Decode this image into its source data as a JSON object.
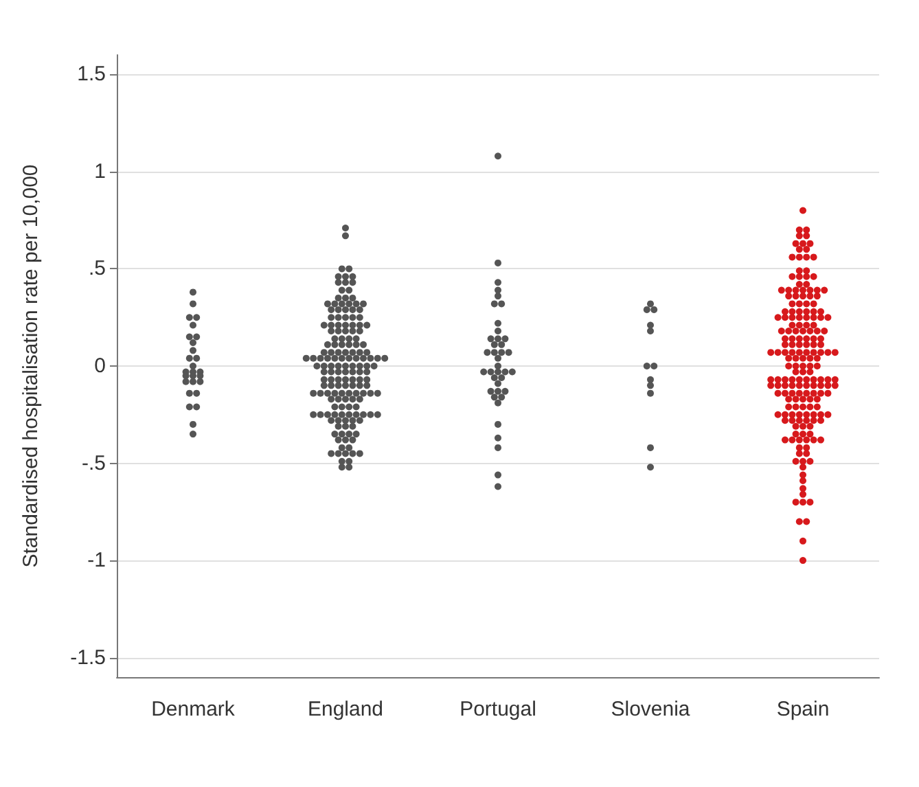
{
  "chart_data": {
    "type": "scatter",
    "ylabel": "Standardised hospitalisation rate per 10,000",
    "categories": [
      "Denmark",
      "England",
      "Portugal",
      "Slovenia",
      "Spain"
    ],
    "ylim": [
      -1.6,
      1.6
    ],
    "yticks": [
      {
        "value": -1.5,
        "label": "-1.5"
      },
      {
        "value": -1,
        "label": "-1"
      },
      {
        "value": -0.5,
        "label": "-.5"
      },
      0,
      {
        "value": 0.5,
        "label": ".5"
      },
      1,
      {
        "value": 1.5,
        "label": "1.5"
      }
    ],
    "grid": "y",
    "marker": "circle",
    "series": [
      {
        "color": "#555555",
        "x": [
          "Denmark",
          "Denmark",
          "Denmark",
          "Denmark",
          "Denmark",
          "Denmark",
          "Denmark",
          "Denmark",
          "Denmark",
          "Denmark",
          "Denmark",
          "Denmark",
          "Denmark",
          "Denmark",
          "Denmark",
          "Denmark",
          "Denmark",
          "Denmark",
          "Denmark",
          "Denmark",
          "Denmark",
          "Denmark",
          "Denmark",
          "Denmark",
          "Denmark",
          "Denmark",
          "Denmark"
        ],
        "values": [
          0.38,
          0.32,
          0.25,
          0.25,
          0.21,
          0.15,
          0.15,
          0.12,
          0.08,
          0.04,
          0.04,
          0,
          -0.03,
          -0.03,
          -0.03,
          -0.05,
          -0.05,
          -0.05,
          -0.08,
          -0.08,
          -0.08,
          -0.14,
          -0.14,
          -0.21,
          -0.21,
          -0.3,
          -0.35
        ]
      },
      {
        "color": "#555555",
        "x": [
          "England",
          "England",
          "England",
          "England",
          "England",
          "England",
          "England",
          "England",
          "England",
          "England",
          "England",
          "England",
          "England",
          "England",
          "England",
          "England",
          "England",
          "England",
          "England",
          "England",
          "England",
          "England",
          "England",
          "England",
          "England",
          "England",
          "England",
          "England",
          "England",
          "England",
          "England",
          "England",
          "England",
          "England",
          "England",
          "England",
          "England",
          "England",
          "England",
          "England",
          "England",
          "England",
          "England",
          "England",
          "England",
          "England",
          "England",
          "England",
          "England",
          "England",
          "England",
          "England",
          "England",
          "England",
          "England",
          "England",
          "England",
          "England",
          "England",
          "England",
          "England",
          "England",
          "England",
          "England",
          "England",
          "England",
          "England",
          "England",
          "England",
          "England",
          "England",
          "England",
          "England",
          "England",
          "England",
          "England",
          "England",
          "England",
          "England",
          "England",
          "England",
          "England",
          "England",
          "England",
          "England",
          "England",
          "England",
          "England",
          "England",
          "England",
          "England",
          "England",
          "England",
          "England",
          "England",
          "England",
          "England",
          "England",
          "England",
          "England",
          "England",
          "England",
          "England",
          "England",
          "England",
          "England",
          "England",
          "England",
          "England",
          "England",
          "England",
          "England",
          "England",
          "England",
          "England",
          "England",
          "England",
          "England",
          "England",
          "England",
          "England",
          "England",
          "England",
          "England",
          "England",
          "England",
          "England",
          "England",
          "England",
          "England",
          "England",
          "England",
          "England",
          "England",
          "England",
          "England",
          "England",
          "England",
          "England",
          "England",
          "England",
          "England",
          "England",
          "England",
          "England",
          "England",
          "England",
          "England",
          "England",
          "England",
          "England",
          "England",
          "England",
          "England",
          "England",
          "England",
          "England"
        ],
        "values": [
          0.71,
          0.67,
          0.5,
          0.5,
          0.46,
          0.46,
          0.46,
          0.43,
          0.43,
          0.43,
          0.39,
          0.39,
          0.35,
          0.35,
          0.35,
          0.32,
          0.32,
          0.32,
          0.32,
          0.32,
          0.32,
          0.29,
          0.29,
          0.29,
          0.29,
          0.29,
          0.25,
          0.25,
          0.25,
          0.25,
          0.25,
          0.21,
          0.21,
          0.21,
          0.21,
          0.21,
          0.21,
          0.21,
          0.18,
          0.18,
          0.18,
          0.18,
          0.18,
          0.14,
          0.14,
          0.14,
          0.14,
          0.11,
          0.11,
          0.11,
          0.11,
          0.11,
          0.11,
          0.07,
          0.07,
          0.07,
          0.07,
          0.07,
          0.07,
          0.07,
          0.04,
          0.04,
          0.04,
          0.04,
          0.04,
          0.04,
          0.04,
          0.04,
          0.04,
          0.04,
          0.04,
          0.04,
          0,
          0,
          0,
          0,
          0,
          0,
          0,
          0,
          0,
          -0.03,
          -0.03,
          -0.03,
          -0.03,
          -0.03,
          -0.03,
          -0.03,
          -0.07,
          -0.07,
          -0.07,
          -0.07,
          -0.07,
          -0.07,
          -0.07,
          -0.1,
          -0.1,
          -0.1,
          -0.1,
          -0.1,
          -0.1,
          -0.1,
          -0.14,
          -0.14,
          -0.14,
          -0.14,
          -0.14,
          -0.14,
          -0.14,
          -0.14,
          -0.14,
          -0.14,
          -0.17,
          -0.17,
          -0.17,
          -0.17,
          -0.17,
          -0.21,
          -0.21,
          -0.21,
          -0.21,
          -0.25,
          -0.25,
          -0.25,
          -0.25,
          -0.25,
          -0.25,
          -0.25,
          -0.25,
          -0.25,
          -0.25,
          -0.28,
          -0.28,
          -0.28,
          -0.28,
          -0.28,
          -0.31,
          -0.31,
          -0.31,
          -0.35,
          -0.35,
          -0.35,
          -0.35,
          -0.38,
          -0.38,
          -0.38,
          -0.42,
          -0.42,
          -0.45,
          -0.45,
          -0.45,
          -0.45,
          -0.45,
          -0.49,
          -0.49,
          -0.52,
          -0.52
        ]
      },
      {
        "color": "#555555",
        "x": [
          "Portugal",
          "Portugal",
          "Portugal",
          "Portugal",
          "Portugal",
          "Portugal",
          "Portugal",
          "Portugal",
          "Portugal",
          "Portugal",
          "Portugal",
          "Portugal",
          "Portugal",
          "Portugal",
          "Portugal",
          "Portugal",
          "Portugal",
          "Portugal",
          "Portugal",
          "Portugal",
          "Portugal",
          "Portugal",
          "Portugal",
          "Portugal",
          "Portugal",
          "Portugal",
          "Portugal",
          "Portugal",
          "Portugal",
          "Portugal",
          "Portugal",
          "Portugal",
          "Portugal",
          "Portugal",
          "Portugal",
          "Portugal",
          "Portugal",
          "Portugal",
          "Portugal"
        ],
        "values": [
          1.08,
          0.53,
          0.43,
          0.39,
          0.36,
          0.32,
          0.32,
          0.22,
          0.18,
          0.14,
          0.14,
          0.14,
          0.11,
          0.11,
          0.07,
          0.07,
          0.07,
          0.07,
          0.04,
          0,
          -0.03,
          -0.03,
          -0.03,
          -0.03,
          -0.03,
          -0.06,
          -0.06,
          -0.09,
          -0.13,
          -0.13,
          -0.13,
          -0.16,
          -0.16,
          -0.19,
          -0.3,
          -0.37,
          -0.42,
          -0.56,
          -0.62
        ]
      },
      {
        "color": "#555555",
        "x": [
          "Slovenia",
          "Slovenia",
          "Slovenia",
          "Slovenia",
          "Slovenia",
          "Slovenia",
          "Slovenia",
          "Slovenia",
          "Slovenia",
          "Slovenia",
          "Slovenia",
          "Slovenia"
        ],
        "values": [
          0.32,
          0.29,
          0.29,
          0.21,
          0.18,
          0,
          0,
          -0.07,
          -0.1,
          -0.14,
          -0.42,
          -0.52
        ]
      },
      {
        "color": "#d7191c",
        "x": [
          "Spain",
          "Spain",
          "Spain",
          "Spain",
          "Spain",
          "Spain",
          "Spain",
          "Spain",
          "Spain",
          "Spain",
          "Spain",
          "Spain",
          "Spain",
          "Spain",
          "Spain",
          "Spain",
          "Spain",
          "Spain",
          "Spain",
          "Spain",
          "Spain",
          "Spain",
          "Spain",
          "Spain",
          "Spain",
          "Spain",
          "Spain",
          "Spain",
          "Spain",
          "Spain",
          "Spain",
          "Spain",
          "Spain",
          "Spain",
          "Spain",
          "Spain",
          "Spain",
          "Spain",
          "Spain",
          "Spain",
          "Spain",
          "Spain",
          "Spain",
          "Spain",
          "Spain",
          "Spain",
          "Spain",
          "Spain",
          "Spain",
          "Spain",
          "Spain",
          "Spain",
          "Spain",
          "Spain",
          "Spain",
          "Spain",
          "Spain",
          "Spain",
          "Spain",
          "Spain",
          "Spain",
          "Spain",
          "Spain",
          "Spain",
          "Spain",
          "Spain",
          "Spain",
          "Spain",
          "Spain",
          "Spain",
          "Spain",
          "Spain",
          "Spain",
          "Spain",
          "Spain",
          "Spain",
          "Spain",
          "Spain",
          "Spain",
          "Spain",
          "Spain",
          "Spain",
          "Spain",
          "Spain",
          "Spain",
          "Spain",
          "Spain",
          "Spain",
          "Spain",
          "Spain",
          "Spain",
          "Spain",
          "Spain",
          "Spain",
          "Spain",
          "Spain",
          "Spain",
          "Spain",
          "Spain",
          "Spain",
          "Spain",
          "Spain",
          "Spain",
          "Spain",
          "Spain",
          "Spain",
          "Spain",
          "Spain",
          "Spain",
          "Spain",
          "Spain",
          "Spain",
          "Spain",
          "Spain",
          "Spain",
          "Spain",
          "Spain",
          "Spain",
          "Spain",
          "Spain",
          "Spain",
          "Spain",
          "Spain",
          "Spain",
          "Spain",
          "Spain",
          "Spain",
          "Spain",
          "Spain",
          "Spain",
          "Spain",
          "Spain",
          "Spain",
          "Spain",
          "Spain",
          "Spain",
          "Spain",
          "Spain",
          "Spain",
          "Spain",
          "Spain",
          "Spain",
          "Spain",
          "Spain",
          "Spain",
          "Spain",
          "Spain",
          "Spain",
          "Spain",
          "Spain",
          "Spain",
          "Spain",
          "Spain",
          "Spain",
          "Spain",
          "Spain",
          "Spain",
          "Spain",
          "Spain",
          "Spain",
          "Spain",
          "Spain",
          "Spain",
          "Spain",
          "Spain",
          "Spain",
          "Spain",
          "Spain",
          "Spain",
          "Spain",
          "Spain",
          "Spain",
          "Spain",
          "Spain",
          "Spain",
          "Spain",
          "Spain",
          "Spain",
          "Spain",
          "Spain",
          "Spain"
        ],
        "values": [
          0.8,
          0.7,
          0.7,
          0.67,
          0.67,
          0.63,
          0.63,
          0.63,
          0.6,
          0.6,
          0.56,
          0.56,
          0.56,
          0.56,
          0.49,
          0.49,
          0.46,
          0.46,
          0.46,
          0.46,
          0.42,
          0.42,
          0.39,
          0.39,
          0.39,
          0.39,
          0.39,
          0.39,
          0.39,
          0.36,
          0.36,
          0.36,
          0.36,
          0.36,
          0.32,
          0.32,
          0.32,
          0.32,
          0.28,
          0.28,
          0.28,
          0.28,
          0.28,
          0.28,
          0.25,
          0.25,
          0.25,
          0.25,
          0.25,
          0.25,
          0.25,
          0.25,
          0.21,
          0.21,
          0.21,
          0.21,
          0.18,
          0.18,
          0.18,
          0.18,
          0.18,
          0.18,
          0.18,
          0.14,
          0.14,
          0.14,
          0.14,
          0.14,
          0.14,
          0.11,
          0.11,
          0.11,
          0.11,
          0.11,
          0.11,
          0.07,
          0.07,
          0.07,
          0.07,
          0.07,
          0.07,
          0.07,
          0.07,
          0.07,
          0.07,
          0.04,
          0.04,
          0.04,
          0.04,
          0.04,
          0,
          0,
          0,
          0,
          0,
          -0.03,
          -0.03,
          -0.03,
          -0.07,
          -0.07,
          -0.07,
          -0.07,
          -0.07,
          -0.07,
          -0.07,
          -0.07,
          -0.07,
          -0.07,
          -0.1,
          -0.1,
          -0.1,
          -0.1,
          -0.1,
          -0.1,
          -0.1,
          -0.1,
          -0.1,
          -0.1,
          -0.14,
          -0.14,
          -0.14,
          -0.14,
          -0.14,
          -0.14,
          -0.14,
          -0.14,
          -0.17,
          -0.17,
          -0.17,
          -0.17,
          -0.17,
          -0.21,
          -0.21,
          -0.21,
          -0.21,
          -0.21,
          -0.25,
          -0.25,
          -0.25,
          -0.25,
          -0.25,
          -0.25,
          -0.25,
          -0.25,
          -0.28,
          -0.28,
          -0.28,
          -0.28,
          -0.28,
          -0.28,
          -0.31,
          -0.31,
          -0.31,
          -0.35,
          -0.35,
          -0.35,
          -0.38,
          -0.38,
          -0.38,
          -0.38,
          -0.38,
          -0.38,
          -0.42,
          -0.42,
          -0.45,
          -0.45,
          -0.49,
          -0.49,
          -0.49,
          -0.52,
          -0.56,
          -0.59,
          -0.63,
          -0.66,
          -0.7,
          -0.7,
          -0.7,
          -0.8,
          -0.8,
          -0.9,
          -1
        ]
      }
    ]
  }
}
